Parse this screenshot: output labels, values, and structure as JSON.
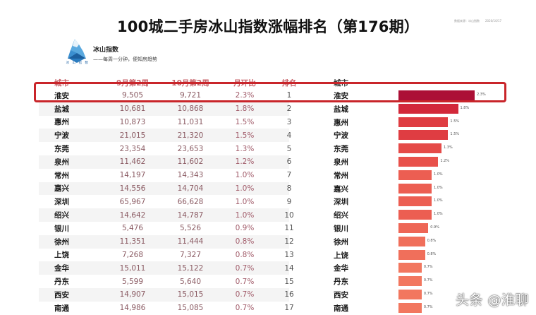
{
  "header": {
    "title": "100城二手房冰山指数涨幅排名（第176期）",
    "meta_source": "数据来源：冰山指数",
    "meta_date": "2020/10/17"
  },
  "brand": {
    "logo_caption": "冰 山 指 数",
    "name": "冰山指数",
    "slogan": "——每周一分钟，便知房趋势"
  },
  "table": {
    "columns": [
      "城市",
      "9月第2周",
      "10月第2周",
      "月环比",
      "排名"
    ],
    "rows": [
      {
        "city": "淮安",
        "sep": "9,505",
        "oct": "9,721",
        "mom": "2.3%",
        "rank": "1"
      },
      {
        "city": "盐城",
        "sep": "10,681",
        "oct": "10,868",
        "mom": "1.8%",
        "rank": "2"
      },
      {
        "city": "惠州",
        "sep": "10,873",
        "oct": "11,031",
        "mom": "1.5%",
        "rank": "3"
      },
      {
        "city": "宁波",
        "sep": "21,015",
        "oct": "21,320",
        "mom": "1.5%",
        "rank": "4"
      },
      {
        "city": "东莞",
        "sep": "23,354",
        "oct": "23,653",
        "mom": "1.3%",
        "rank": "5"
      },
      {
        "city": "泉州",
        "sep": "11,462",
        "oct": "11,602",
        "mom": "1.2%",
        "rank": "6"
      },
      {
        "city": "常州",
        "sep": "14,197",
        "oct": "14,343",
        "mom": "1.0%",
        "rank": "7"
      },
      {
        "city": "嘉兴",
        "sep": "14,556",
        "oct": "14,704",
        "mom": "1.0%",
        "rank": "8"
      },
      {
        "city": "深圳",
        "sep": "65,967",
        "oct": "66,628",
        "mom": "1.0%",
        "rank": "9"
      },
      {
        "city": "绍兴",
        "sep": "14,642",
        "oct": "14,787",
        "mom": "1.0%",
        "rank": "10"
      },
      {
        "city": "银川",
        "sep": "5,476",
        "oct": "5,526",
        "mom": "0.9%",
        "rank": "11"
      },
      {
        "city": "徐州",
        "sep": "11,351",
        "oct": "11,444",
        "mom": "0.8%",
        "rank": "12"
      },
      {
        "city": "上饶",
        "sep": "7,268",
        "oct": "7,327",
        "mom": "0.8%",
        "rank": "13"
      },
      {
        "city": "金华",
        "sep": "15,011",
        "oct": "15,122",
        "mom": "0.7%",
        "rank": "14"
      },
      {
        "city": "丹东",
        "sep": "5,599",
        "oct": "5,640",
        "mom": "0.7%",
        "rank": "15"
      },
      {
        "city": "西安",
        "sep": "14,907",
        "oct": "15,015",
        "mom": "0.7%",
        "rank": "16"
      },
      {
        "city": "南通",
        "sep": "14,986",
        "oct": "15,085",
        "mom": "0.7%",
        "rank": "17"
      }
    ]
  },
  "bar_header": "城市",
  "chart_data": {
    "type": "bar",
    "orientation": "horizontal",
    "title": "100城二手房冰山指数涨幅排名（第176期）",
    "xlabel": "",
    "ylabel": "城市",
    "categories": [
      "淮安",
      "盐城",
      "惠州",
      "宁波",
      "东莞",
      "泉州",
      "常州",
      "嘉兴",
      "深圳",
      "绍兴",
      "银川",
      "徐州",
      "上饶",
      "金华",
      "丹东",
      "西安",
      "南通"
    ],
    "values": [
      2.3,
      1.8,
      1.5,
      1.5,
      1.3,
      1.2,
      1.0,
      1.0,
      1.0,
      1.0,
      0.9,
      0.8,
      0.8,
      0.7,
      0.7,
      0.7,
      0.7
    ],
    "labels": [
      "2.3%",
      "1.8%",
      "1.5%",
      "1.5%",
      "1.3%",
      "1.2%",
      "1.0%",
      "1.0%",
      "1.0%",
      "1.0%",
      "0.9%",
      "0.8%",
      "0.8%",
      "0.7%",
      "0.7%",
      "0.7%",
      "0.7%"
    ],
    "unit": "%",
    "colors": [
      "#ac0f36",
      "#d2283a",
      "#df3d42",
      "#df3d42",
      "#e54a48",
      "#e8514b",
      "#ec5e52",
      "#ec5e52",
      "#ec5e52",
      "#ec5e52",
      "#ee6656",
      "#f06f5b",
      "#f06f5b",
      "#f2775f",
      "#f2775f",
      "#f2775f",
      "#f2775f"
    ],
    "grid": false,
    "legend": null,
    "highlight_row": "淮安"
  },
  "watermark": "头条 @淮聊",
  "colors": {
    "highlight_border": "#c9252a",
    "header_text": "#c8646b",
    "top_bar": "#ac0f36"
  }
}
